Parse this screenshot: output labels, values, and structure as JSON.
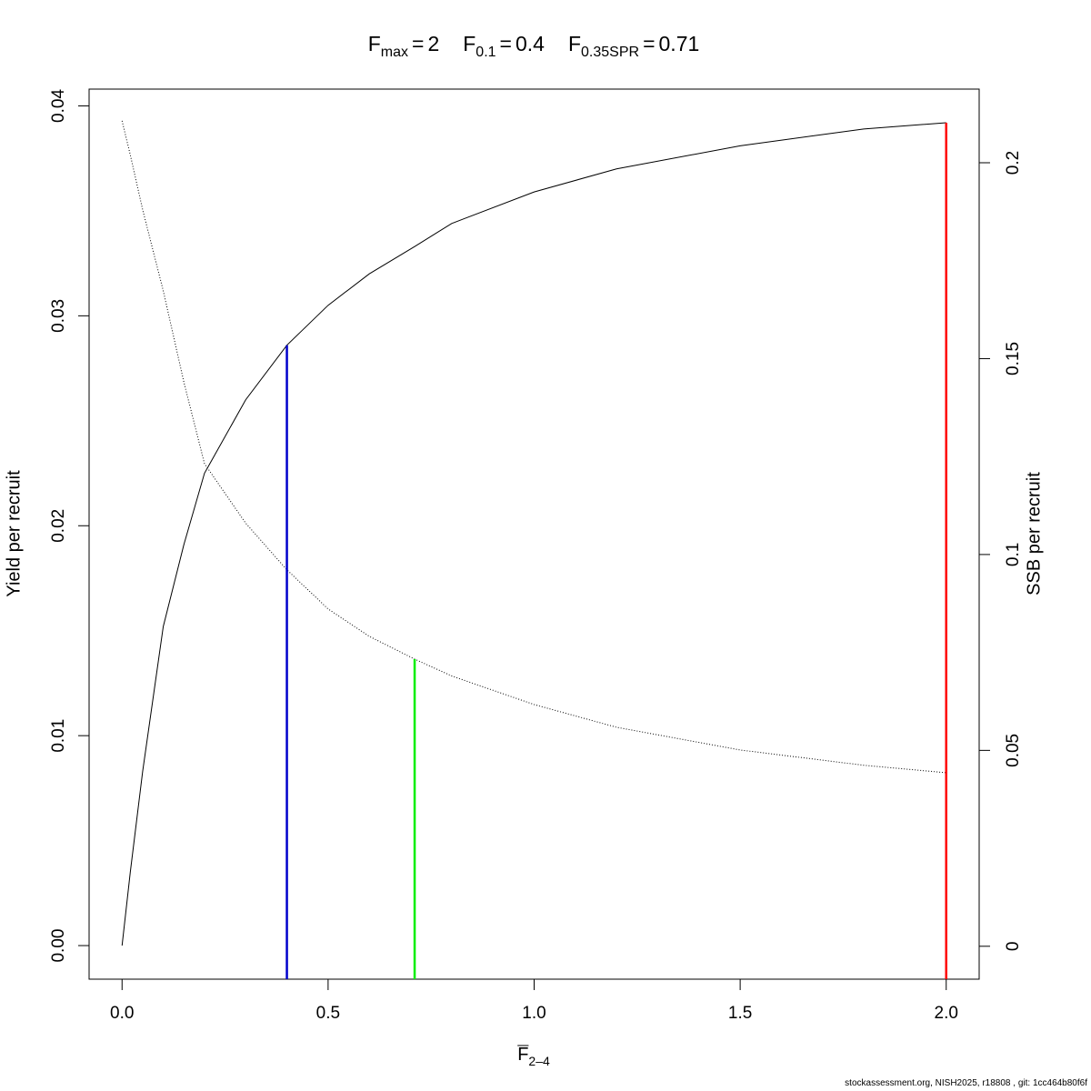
{
  "chart_data": {
    "type": "line",
    "reference_lines": [
      {
        "symbol": "F",
        "subscript": "max",
        "sign": "=",
        "x": 2,
        "y": 0.0392,
        "axis": "y",
        "color": "#ff0000"
      },
      {
        "symbol": "F",
        "subscript": "0.1",
        "sign": "=",
        "x": 0.4,
        "y": 0.0286,
        "axis": "y",
        "color": "#0000cc"
      },
      {
        "symbol": "F",
        "subscript": "0.35SPR",
        "sign": "=",
        "x": 0.71,
        "y": 0.0733,
        "axis": "y2",
        "color": "#00ee00"
      }
    ],
    "xlabel": {
      "text": "F",
      "subscript": "2–4"
    },
    "ylabel": "Yield per recruit",
    "y2label": "SSB per recruit",
    "footer": "stockassessment.org, NISH2025, r18808 , git: 1cc464b80f6f",
    "x": [
      0,
      0.02,
      0.05,
      0.1,
      0.15,
      0.2,
      0.3,
      0.4,
      0.5,
      0.6,
      0.71,
      0.8,
      1.0,
      1.2,
      1.5,
      1.8,
      2.0
    ],
    "series": [
      {
        "color": "#000000",
        "dash": "solid",
        "axis": "y",
        "values": [
          0,
          0.0035,
          0.0083,
          0.0152,
          0.0191,
          0.0225,
          0.026,
          0.0286,
          0.0305,
          0.032,
          0.0333,
          0.0344,
          0.0359,
          0.037,
          0.0381,
          0.0389,
          0.0392
        ]
      },
      {
        "color": "#000000",
        "dash": "dotted",
        "axis": "y2",
        "values": [
          0.2107,
          0.202,
          0.188,
          0.1673,
          0.144,
          0.1232,
          0.108,
          0.0961,
          0.0861,
          0.0791,
          0.0733,
          0.069,
          0.0617,
          0.0559,
          0.0501,
          0.0462,
          0.0443
        ]
      }
    ],
    "xlim": [
      -0.08,
      2.08
    ],
    "xticks": [
      {
        "value": 0,
        "label": "0.0"
      },
      0.5,
      {
        "value": 1,
        "label": "1.0"
      },
      1.5,
      {
        "value": 2,
        "label": "2.0"
      }
    ],
    "ylim": [
      -0.0016,
      0.0408
    ],
    "yticks": [
      {
        "value": 0,
        "label": "0.00"
      },
      0.01,
      0.02,
      0.03,
      0.04
    ],
    "y2lim": [
      -0.0084,
      0.2188
    ],
    "y2ticks": [
      0,
      0.05,
      0.1,
      0.15,
      0.2
    ],
    "grid": false
  }
}
